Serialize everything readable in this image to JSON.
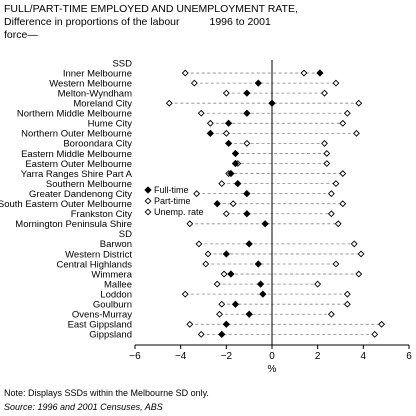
{
  "title": {
    "line1": "FULL/PART-TIME EMPLOYED AND UNEMPLOYMENT RATE,",
    "line2": "Difference in proportions of the labour",
    "period": "1996 to 2001",
    "line3": "force—"
  },
  "notes": {
    "note": "Note: Displays SSDs within the Melbourne SD only.",
    "source": "Source: 1996 and 2001 Censuses, ABS"
  },
  "chart_data": {
    "type": "scatter",
    "xlabel": "%",
    "xlim": [
      -6,
      6
    ],
    "xticks": [
      "−6",
      "−4",
      "−2",
      "0",
      "2",
      "4",
      "6"
    ],
    "xtick_values": [
      -6,
      -4,
      -2,
      0,
      2,
      4,
      6
    ],
    "legend_position": "left-middle",
    "series_names": [
      "Full-time",
      "Part-time",
      "Unemp. rate"
    ],
    "rows": [
      {
        "label": "SSD",
        "header": true
      },
      {
        "label": "Inner Melbourne",
        "full": 2.1,
        "part": 1.4,
        "unemp": -3.8
      },
      {
        "label": "Western Melbourne",
        "full": -0.6,
        "part": 2.8,
        "unemp": -3.4
      },
      {
        "label": "Melton-Wyndham",
        "full": -1.1,
        "part": 2.3,
        "unemp": -2.0
      },
      {
        "label": "Moreland City",
        "full": 0.0,
        "part": 3.8,
        "unemp": -4.5
      },
      {
        "label": "Northern Middle Melbourne",
        "full": -1.1,
        "part": 3.3,
        "unemp": -3.1
      },
      {
        "label": "Hume City",
        "full": -1.9,
        "part": 3.1,
        "unemp": -2.7
      },
      {
        "label": "Northern Outer Melbourne",
        "full": -2.7,
        "part": 3.7,
        "unemp": -2.0
      },
      {
        "label": "Boroondara City",
        "full": -1.9,
        "part": 2.3,
        "unemp": -1.1
      },
      {
        "label": "Eastern Middle Melbourne",
        "full": -1.6,
        "part": 2.4,
        "unemp": -1.6
      },
      {
        "label": "Eastern Outer Melbourne",
        "full": -1.6,
        "part": 2.4,
        "unemp": -1.5
      },
      {
        "label": "Yarra Ranges Shire Part A",
        "full": -1.8,
        "part": 3.1,
        "unemp": -1.9
      },
      {
        "label": "Southern Melbourne",
        "full": -1.5,
        "part": 2.8,
        "unemp": -2.2
      },
      {
        "label": "Greater Dandenong City",
        "full": -1.1,
        "part": 2.6,
        "unemp": -3.3
      },
      {
        "label": "South Eastern Outer Melbourne",
        "full": -2.4,
        "part": 3.1,
        "unemp": -1.7
      },
      {
        "label": "Frankston City",
        "full": -1.1,
        "part": 2.6,
        "unemp": -2.0
      },
      {
        "label": "Mornington Peninsula Shire",
        "full": -0.3,
        "part": 2.9,
        "unemp": -3.6
      },
      {
        "label": "SD",
        "header": true
      },
      {
        "label": "Barwon",
        "full": -1.0,
        "part": 3.6,
        "unemp": -3.2
      },
      {
        "label": "Western District",
        "full": -2.0,
        "part": 3.9,
        "unemp": -2.8
      },
      {
        "label": "Central Highlands",
        "full": -0.6,
        "part": 2.8,
        "unemp": -2.9
      },
      {
        "label": "Wimmera",
        "full": -1.8,
        "part": 3.8,
        "unemp": -2.1
      },
      {
        "label": "Mallee",
        "full": -0.5,
        "part": 2.0,
        "unemp": -2.4
      },
      {
        "label": "Loddon",
        "full": -0.4,
        "part": 3.3,
        "unemp": -3.8
      },
      {
        "label": "Goulburn",
        "full": -1.6,
        "part": 3.3,
        "unemp": -2.2
      },
      {
        "label": "Ovens-Murray",
        "full": -1.0,
        "part": 2.6,
        "unemp": -2.3
      },
      {
        "label": "East Gippsland",
        "full": -2.0,
        "part": 4.8,
        "unemp": -3.6
      },
      {
        "label": "Gippsland",
        "full": -2.2,
        "part": 4.5,
        "unemp": -3.1
      }
    ]
  }
}
